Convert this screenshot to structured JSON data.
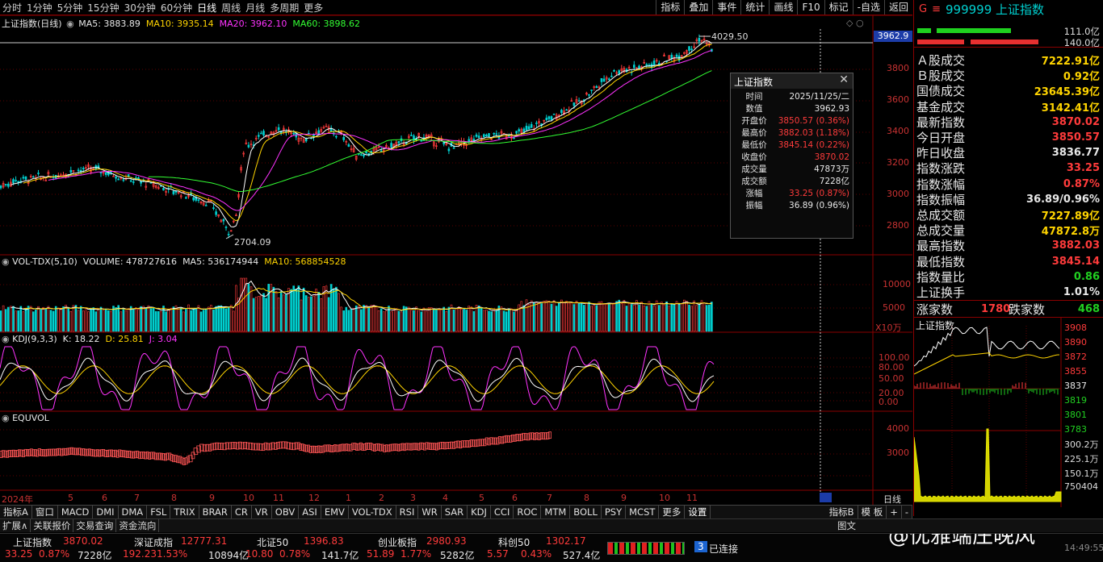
{
  "topbar": {
    "periods": [
      "分时",
      "1分钟",
      "5分钟",
      "15分钟",
      "30分钟",
      "60分钟",
      "日线",
      "周线",
      "月线",
      "多周期",
      "更多"
    ],
    "active_period": "日线",
    "tools": [
      "指标",
      "叠加",
      "事件",
      "统计",
      "画线",
      "F10",
      "标记",
      "-自选",
      "返回"
    ]
  },
  "main_panel": {
    "title": "上证指数(日线)",
    "ma5": "MA5: 3883.89",
    "ma10": "MA10: 3935.14",
    "ma20": "MA20: 3962.10",
    "ma60": "MA60: 3898.62",
    "price_marker": "3962.9",
    "high_label": "4029.50",
    "low_label": "2704.09",
    "y_ticks": [
      "3800",
      "3600",
      "3400",
      "3200",
      "3000",
      "2800"
    ]
  },
  "vol_panel": {
    "title": "VOL-TDX(5,10)",
    "volume": "VOLUME: 478727616",
    "ma5": "MA5: 536174944",
    "ma10": "MA10: 568854528",
    "y_ticks": [
      "10000",
      "5000"
    ],
    "unit": "X10万"
  },
  "kdj_panel": {
    "title": "KDJ(9,3,3)",
    "k": "K: 18.22",
    "d": "D: 25.81",
    "j": "J: 3.04",
    "y_ticks": [
      "100.00",
      "80.00",
      "50.00",
      "20.00",
      "0.00"
    ]
  },
  "equvol_panel": {
    "title": "EQUVOL",
    "y_ticks": [
      "4000",
      "3000"
    ]
  },
  "time_axis": {
    "labels": [
      "2024年",
      "5",
      "6",
      "7",
      "8",
      "9",
      "10",
      "11",
      "12",
      "1",
      "2",
      "3",
      "4",
      "5",
      "6",
      "7",
      "8",
      "9",
      "10",
      "11"
    ],
    "period_label": "日线"
  },
  "tooltip": {
    "title": "上证指数",
    "rows": [
      {
        "k": "时间",
        "v": "2025/11/25/二",
        "c": "white"
      },
      {
        "k": "数值",
        "v": "3962.93",
        "c": "white"
      },
      {
        "k": "开盘价",
        "v": "3850.57 (0.36%)",
        "c": "red"
      },
      {
        "k": "最高价",
        "v": "3882.03 (1.18%)",
        "c": "red"
      },
      {
        "k": "最低价",
        "v": "3845.14 (0.22%)",
        "c": "red"
      },
      {
        "k": "收盘价",
        "v": "3870.02",
        "c": "red"
      },
      {
        "k": "成交量",
        "v": "47873万",
        "c": "white"
      },
      {
        "k": "成交额",
        "v": "7228亿",
        "c": "white"
      },
      {
        "k": "涨幅",
        "v": "33.25 (0.87%)",
        "c": "red"
      },
      {
        "k": "振幅",
        "v": "36.89 (0.96%)",
        "c": "white"
      }
    ]
  },
  "quote": {
    "badge": "G",
    "code": "999999",
    "name": "上证指数",
    "ratio_top": "111.0亿",
    "ratio_bottom": "140.0亿",
    "rows": [
      {
        "k": "Ａ股成交",
        "v": "7222.91亿",
        "c": "yellow"
      },
      {
        "k": "Ｂ股成交",
        "v": "0.92亿",
        "c": "yellow"
      },
      {
        "k": "国债成交",
        "v": "23645.39亿",
        "c": "yellow"
      },
      {
        "k": "基金成交",
        "v": "3142.41亿",
        "c": "yellow"
      },
      {
        "k": "最新指数",
        "v": "3870.02",
        "c": "red"
      },
      {
        "k": "今日开盘",
        "v": "3850.57",
        "c": "red"
      },
      {
        "k": "昨日收盘",
        "v": "3836.77",
        "c": "white"
      },
      {
        "k": "指数涨跌",
        "v": "33.25",
        "c": "red"
      },
      {
        "k": "指数涨幅",
        "v": "0.87%",
        "c": "red"
      },
      {
        "k": "指数振幅",
        "v": "36.89/0.96%",
        "c": "white"
      },
      {
        "k": "总成交额",
        "v": "7227.89亿",
        "c": "yellow"
      },
      {
        "k": "总成交量",
        "v": "47872.8万",
        "c": "yellow"
      },
      {
        "k": "最高指数",
        "v": "3882.03",
        "c": "red"
      },
      {
        "k": "最低指数",
        "v": "3845.14",
        "c": "red"
      },
      {
        "k": "指数量比",
        "v": "0.86",
        "c": "green"
      },
      {
        "k": "上证换手",
        "v": "1.01%",
        "c": "white"
      }
    ],
    "up_label": "涨家数",
    "up_value": "1780",
    "down_label": "跌家数",
    "down_value": "468"
  },
  "mini_chart": {
    "title": "上证指数",
    "price_ticks": [
      "3908",
      "3890",
      "3872",
      "3855",
      "3837",
      "3819",
      "3801",
      "3783"
    ],
    "vol_ticks": [
      "300.2万",
      "225.1万",
      "150.1万",
      "750404"
    ]
  },
  "bottom_tabs": [
    "指标A",
    "窗口",
    "MACD",
    "DMI",
    "DMA",
    "FSL",
    "TRIX",
    "BRAR",
    "CR",
    "VR",
    "OBV",
    "ASI",
    "EMV",
    "VOL-TDX",
    "RSI",
    "WR",
    "SAR",
    "KDJ",
    "CCI",
    "ROC",
    "MTM",
    "BOLL",
    "PSY",
    "MCST",
    "更多",
    "设置"
  ],
  "bottom_right_tabs": [
    "指标B",
    "模 板",
    "+",
    "-"
  ],
  "links": [
    "扩展∧",
    "关联报价",
    "交易查询",
    "资金流向"
  ],
  "links_right": "图文",
  "status": [
    {
      "name": "上证指数",
      "price": "3870.02",
      "chg": "33.25",
      "pct": "0.87%",
      "amt": "7228亿"
    },
    {
      "name": "深证成指",
      "price": "12777.31",
      "chg": "192.23",
      "pct": "1.53%",
      "amt": "10894亿"
    },
    {
      "name": "北证50",
      "price": "1396.83",
      "chg": "10.80",
      "pct": "0.78%",
      "amt": "141.7亿"
    },
    {
      "name": "创业板指",
      "price": "2980.93",
      "chg": "51.89",
      "pct": "1.77%",
      "amt": "5282亿"
    },
    {
      "name": "科创50",
      "price": "1302.17",
      "chg": "5.57",
      "pct": "0.43%",
      "amt": "527.4亿"
    }
  ],
  "connection": {
    "count": "3",
    "label": "已连接"
  },
  "watermark": "@优雅端庄晚风",
  "clock": "14:49:55",
  "colors": {
    "up": "#ff3b3b",
    "down": "#00d0d0",
    "ma5": "#ffffff",
    "ma10": "#ffd400",
    "ma20": "#ff33ff",
    "ma60": "#33ff33"
  }
}
